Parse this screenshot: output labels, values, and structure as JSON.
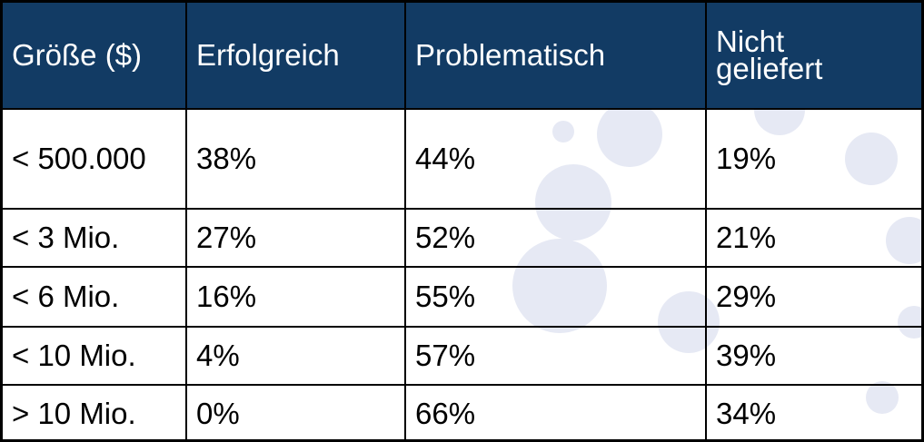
{
  "colors": {
    "header_bg": "#123b64",
    "header_text": "#ffffff",
    "bubble": "#e6e9f4"
  },
  "chart_data": {
    "type": "table",
    "columns": [
      "Größe ($)",
      "Erfolgreich",
      "Problematisch",
      "Nicht geliefert"
    ],
    "rows": [
      [
        "< 500.000",
        "38%",
        "44%",
        "19%"
      ],
      [
        "< 3 Mio.",
        "27%",
        "52%",
        "21%"
      ],
      [
        "< 6 Mio.",
        "16%",
        "55%",
        "29%"
      ],
      [
        "< 10 Mio.",
        "4%",
        "57%",
        "39%"
      ],
      [
        "> 10 Mio.",
        "0%",
        "66%",
        "34%"
      ]
    ]
  }
}
